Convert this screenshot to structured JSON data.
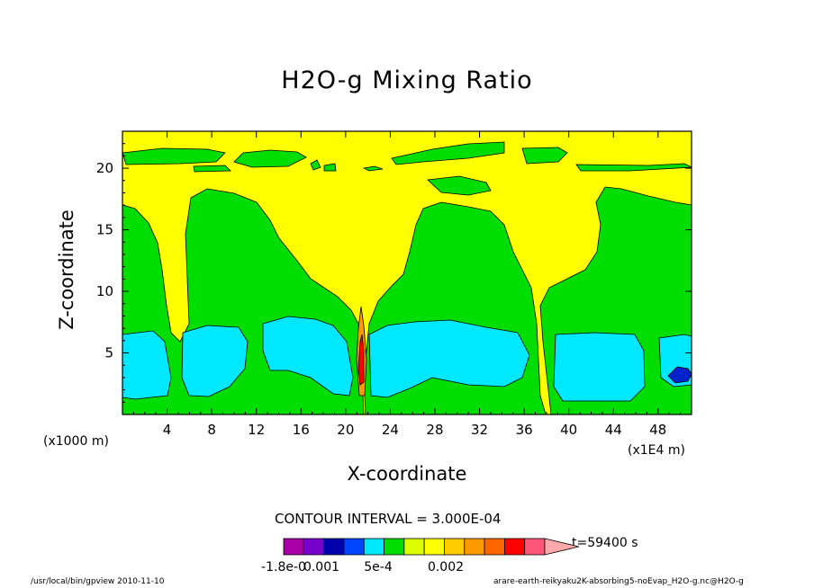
{
  "colors": {
    "yellow": "#ffff00",
    "green": "#00dd00",
    "cyan": "#00e8ff",
    "blue": "#0022cc",
    "orange": "#ff9900",
    "red": "#ff0000",
    "frame": "#000000"
  },
  "chart_data": {
    "type": "heatmap",
    "subtype": "filled-contour",
    "title": "H2O-g Mixing Ratio",
    "xlabel": "X-coordinate",
    "ylabel": "Z-coordinate",
    "x_unit": "(x1000 m)",
    "x_unit_secondary": "(x1E4 m)",
    "xlim": [
      0,
      51
    ],
    "ylim": [
      0,
      23
    ],
    "xticks": [
      4,
      8,
      12,
      16,
      20,
      24,
      28,
      32,
      36,
      40,
      44,
      48
    ],
    "yticks": [
      5,
      10,
      15,
      20
    ],
    "grid": false,
    "contour_interval": "CONTOUR INTERVAL = 3.000E-04",
    "time": "t=59400 s",
    "colorbar": {
      "levels_shown": [
        "-1.8e-0",
        "0.001",
        "5e-4",
        "0.002"
      ],
      "colors": [
        "#aa00aa",
        "#7700cc",
        "#0000aa",
        "#0044ff",
        "#00e8ff",
        "#00dd00",
        "#ddff00",
        "#ffff00",
        "#ffcc00",
        "#ff9900",
        "#ff6600",
        "#ff0000",
        "#ff5577",
        "#ffaaaa"
      ]
    },
    "regions": [
      {
        "name": "upper-green-bands",
        "value": "green",
        "x_range": [
          0,
          51
        ],
        "z_range": [
          19.5,
          21.5
        ]
      },
      {
        "name": "mid-green-columns",
        "value": "green",
        "x_range": [
          0,
          51
        ],
        "z_range": [
          0,
          18
        ]
      },
      {
        "name": "low-cyan-cells",
        "value": "cyan",
        "x_range": [
          0,
          51
        ],
        "z_range": [
          1,
          7
        ]
      },
      {
        "name": "updraft-core",
        "value": "red",
        "x_range": [
          21,
          22
        ],
        "z_range": [
          2,
          8
        ]
      },
      {
        "name": "blue-spot",
        "value": "blue",
        "x_range": [
          49.5,
          51
        ],
        "z_range": [
          3,
          4
        ]
      }
    ]
  },
  "footer": {
    "left": "/usr/local/bin/gpview  2010-11-10",
    "right": "arare-earth-reikyaku2K-absorbing5-noEvap_H2O-g.nc@H2O-g"
  }
}
